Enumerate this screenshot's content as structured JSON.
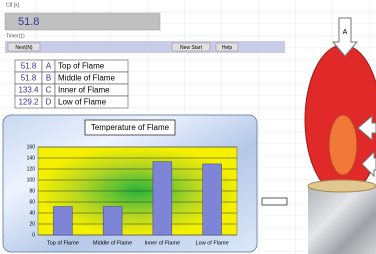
{
  "cell_ref": "C8 [x]",
  "top_value": "51.8",
  "timer_label": "Timer(1)",
  "buttons": [
    "Next(N)",
    "New Start",
    "Help"
  ],
  "table": {
    "rows": [
      [
        "51.8",
        "A",
        "Top of Flame"
      ],
      [
        "51.8",
        "B",
        "Middle of Flame"
      ],
      [
        "133.4",
        "C",
        "Inner of Flame"
      ],
      [
        "129.2",
        "D",
        "Low of Flame"
      ]
    ]
  },
  "diagram": {
    "arrow_label": "A"
  },
  "chart_data": {
    "type": "bar",
    "title": "Temperature of Flame",
    "categories": [
      "Top of Flame",
      "Middle of Flame",
      "Inner of Flame",
      "Low of Flame"
    ],
    "values": [
      51.8,
      51.8,
      133.4,
      129.2
    ],
    "color": "#7f85d6",
    "ylim": [
      0,
      160
    ],
    "yticks": [
      0,
      20,
      40,
      60,
      80,
      100,
      120,
      140,
      160
    ],
    "grid": true
  }
}
